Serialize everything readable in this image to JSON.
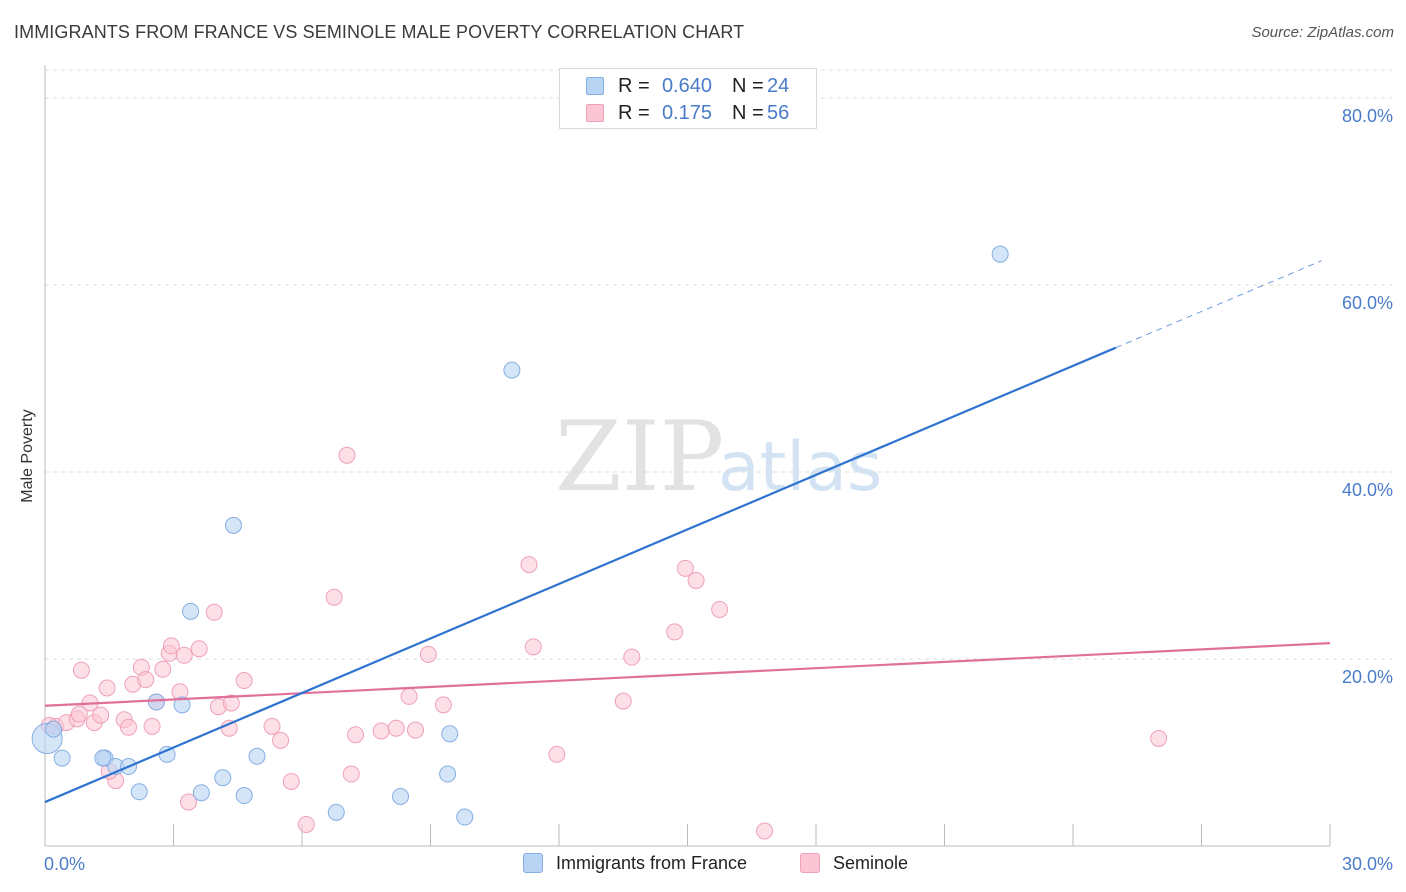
{
  "header": {
    "title": "IMMIGRANTS FROM FRANCE VS SEMINOLE MALE POVERTY CORRELATION CHART",
    "source": "Source: ZipAtlas.com"
  },
  "watermark": {
    "zip": "ZIP",
    "atlas": "atlas"
  },
  "legend": {
    "r_label": "R =",
    "n_label": "N =",
    "series": [
      {
        "name": "Immigrants from France",
        "r": "0.640",
        "n": "24"
      },
      {
        "name": "Seminole",
        "r": "0.175",
        "n": "56"
      }
    ]
  },
  "colors": {
    "blue_fill": "#b9d3f3",
    "blue_stroke": "#85aee3",
    "blue_line": "#2e74cf",
    "pink_fill": "#fbc5d4",
    "pink_stroke": "#efa1b8",
    "pink_line": "#e0709a",
    "tick_text": "#4a7cc9",
    "grid": "#dddddd"
  },
  "chart_data": {
    "type": "scatter",
    "title": "IMMIGRANTS FROM FRANCE VS SEMINOLE MALE POVERTY CORRELATION CHART",
    "xlabel": "",
    "ylabel": "Male Poverty",
    "xlim": [
      0,
      30
    ],
    "ylim": [
      0,
      83
    ],
    "x_tick_labels": [
      {
        "value": 0,
        "label": "0.0%"
      },
      {
        "value": 30,
        "label": "30.0%"
      }
    ],
    "y_tick_labels": [
      {
        "value": 20,
        "label": "20.0%"
      },
      {
        "value": 40,
        "label": "40.0%"
      },
      {
        "value": 60,
        "label": "60.0%"
      },
      {
        "value": 80,
        "label": "80.0%"
      }
    ],
    "x_minor_ticks": [
      0,
      3,
      6,
      9,
      12,
      15,
      18,
      21,
      24,
      27,
      30
    ],
    "grid": "horizontal dashed",
    "legend_position": "top-center",
    "series": [
      {
        "name": "Immigrants from France",
        "color": "#b9d3f3",
        "points": [
          [
            0.05,
            11.5
          ],
          [
            0.4,
            9.4
          ],
          [
            1.4,
            9.4
          ],
          [
            1.35,
            9.4
          ],
          [
            1.65,
            8.5
          ],
          [
            1.95,
            8.5
          ],
          [
            2.2,
            5.8
          ],
          [
            2.6,
            15.4
          ],
          [
            2.85,
            9.8
          ],
          [
            3.2,
            15.1
          ],
          [
            3.4,
            25.1
          ],
          [
            3.65,
            5.7
          ],
          [
            4.15,
            7.3
          ],
          [
            4.4,
            34.3
          ],
          [
            4.65,
            5.4
          ],
          [
            4.95,
            9.6
          ],
          [
            6.8,
            3.6
          ],
          [
            8.3,
            5.3
          ],
          [
            9.4,
            7.7
          ],
          [
            9.45,
            12.0
          ],
          [
            9.8,
            3.1
          ],
          [
            10.9,
            50.9
          ],
          [
            22.3,
            63.3
          ],
          [
            0.2,
            12.5
          ]
        ],
        "trend": {
          "x0": 0,
          "y0": 4.7,
          "x1": 25.0,
          "y1": 53.3,
          "dash_to_x": 29.8,
          "dash_to_y": 62.6
        }
      },
      {
        "name": "Seminole",
        "color": "#fbc5d4",
        "points": [
          [
            0.25,
            12.8
          ],
          [
            0.5,
            13.2
          ],
          [
            0.75,
            13.6
          ],
          [
            0.8,
            14.1
          ],
          [
            0.85,
            18.8
          ],
          [
            1.05,
            15.3
          ],
          [
            1.15,
            13.2
          ],
          [
            1.3,
            14.0
          ],
          [
            1.45,
            16.9
          ],
          [
            1.65,
            7.0
          ],
          [
            1.85,
            13.5
          ],
          [
            1.95,
            12.7
          ],
          [
            2.05,
            17.3
          ],
          [
            2.25,
            19.1
          ],
          [
            2.35,
            17.8
          ],
          [
            2.5,
            12.8
          ],
          [
            2.6,
            15.4
          ],
          [
            2.75,
            18.9
          ],
          [
            2.9,
            20.6
          ],
          [
            2.95,
            21.4
          ],
          [
            3.15,
            16.5
          ],
          [
            3.25,
            20.4
          ],
          [
            3.35,
            4.7
          ],
          [
            3.6,
            21.1
          ],
          [
            3.95,
            25.0
          ],
          [
            4.05,
            14.9
          ],
          [
            4.35,
            15.3
          ],
          [
            4.65,
            17.7
          ],
          [
            5.3,
            12.8
          ],
          [
            5.5,
            11.3
          ],
          [
            5.75,
            6.9
          ],
          [
            6.1,
            2.3
          ],
          [
            6.75,
            26.6
          ],
          [
            7.05,
            41.8
          ],
          [
            7.15,
            7.7
          ],
          [
            7.25,
            11.9
          ],
          [
            7.85,
            12.3
          ],
          [
            8.2,
            12.6
          ],
          [
            8.5,
            16.0
          ],
          [
            8.65,
            12.4
          ],
          [
            8.95,
            20.5
          ],
          [
            9.3,
            15.1
          ],
          [
            11.3,
            30.1
          ],
          [
            11.4,
            21.3
          ],
          [
            11.95,
            9.8
          ],
          [
            13.5,
            15.5
          ],
          [
            13.7,
            20.2
          ],
          [
            14.7,
            22.9
          ],
          [
            14.95,
            29.7
          ],
          [
            15.2,
            28.4
          ],
          [
            15.75,
            25.3
          ],
          [
            16.8,
            1.6
          ],
          [
            26.0,
            11.5
          ],
          [
            4.3,
            12.6
          ],
          [
            1.5,
            8.0
          ],
          [
            0.1,
            12.9
          ]
        ],
        "trend": {
          "x0": 0,
          "y0": 15.0,
          "x1": 30,
          "y1": 21.7
        }
      }
    ]
  }
}
